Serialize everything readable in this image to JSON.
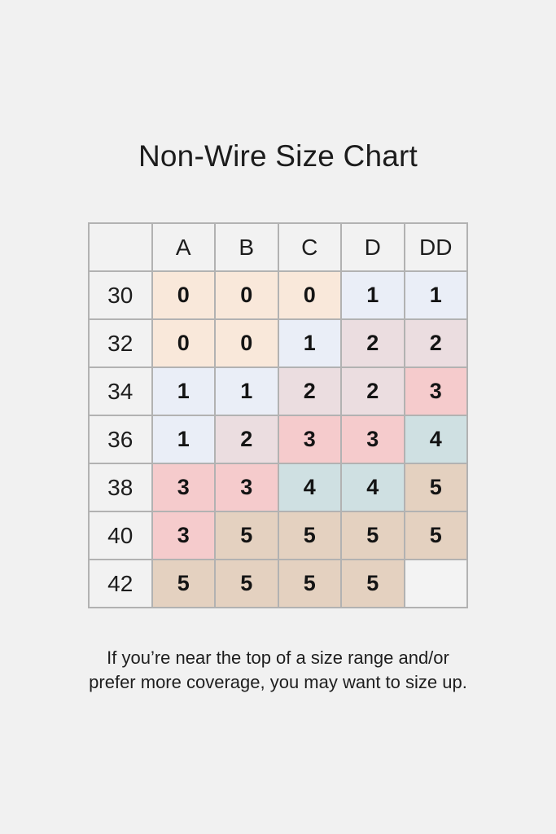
{
  "page": {
    "background_color": "#f1f1f1",
    "note_lines": [
      "If you’re near the top of a size range and/or",
      "prefer more coverage, you may want to size up."
    ]
  },
  "chart_data": {
    "type": "table",
    "title": "Non-Wire Size Chart",
    "column_headers": [
      "A",
      "B",
      "C",
      "D",
      "DD"
    ],
    "row_headers": [
      "30",
      "32",
      "34",
      "36",
      "38",
      "40",
      "42"
    ],
    "rows": [
      [
        "0",
        "0",
        "0",
        "1",
        "1"
      ],
      [
        "0",
        "0",
        "1",
        "2",
        "2"
      ],
      [
        "1",
        "1",
        "2",
        "2",
        "3"
      ],
      [
        "1",
        "2",
        "3",
        "3",
        "4"
      ],
      [
        "3",
        "3",
        "4",
        "4",
        "5"
      ],
      [
        "3",
        "5",
        "5",
        "5",
        "5"
      ],
      [
        "5",
        "5",
        "5",
        "5",
        ""
      ]
    ],
    "value_colors": {
      "0": "#f9e8da",
      "1": "#eaeef7",
      "2": "#ebdde0",
      "3": "#f5cbcc",
      "4": "#cfe0e2",
      "5": "#e4d1c0",
      "": "#f3f3f3"
    },
    "header_background": "#f2f2f2",
    "border_color": "#b2b2b2",
    "note": "If you’re near the top of a size range and/or prefer more coverage, you may want to size up.",
    "legend_position": "none",
    "grid": true
  }
}
